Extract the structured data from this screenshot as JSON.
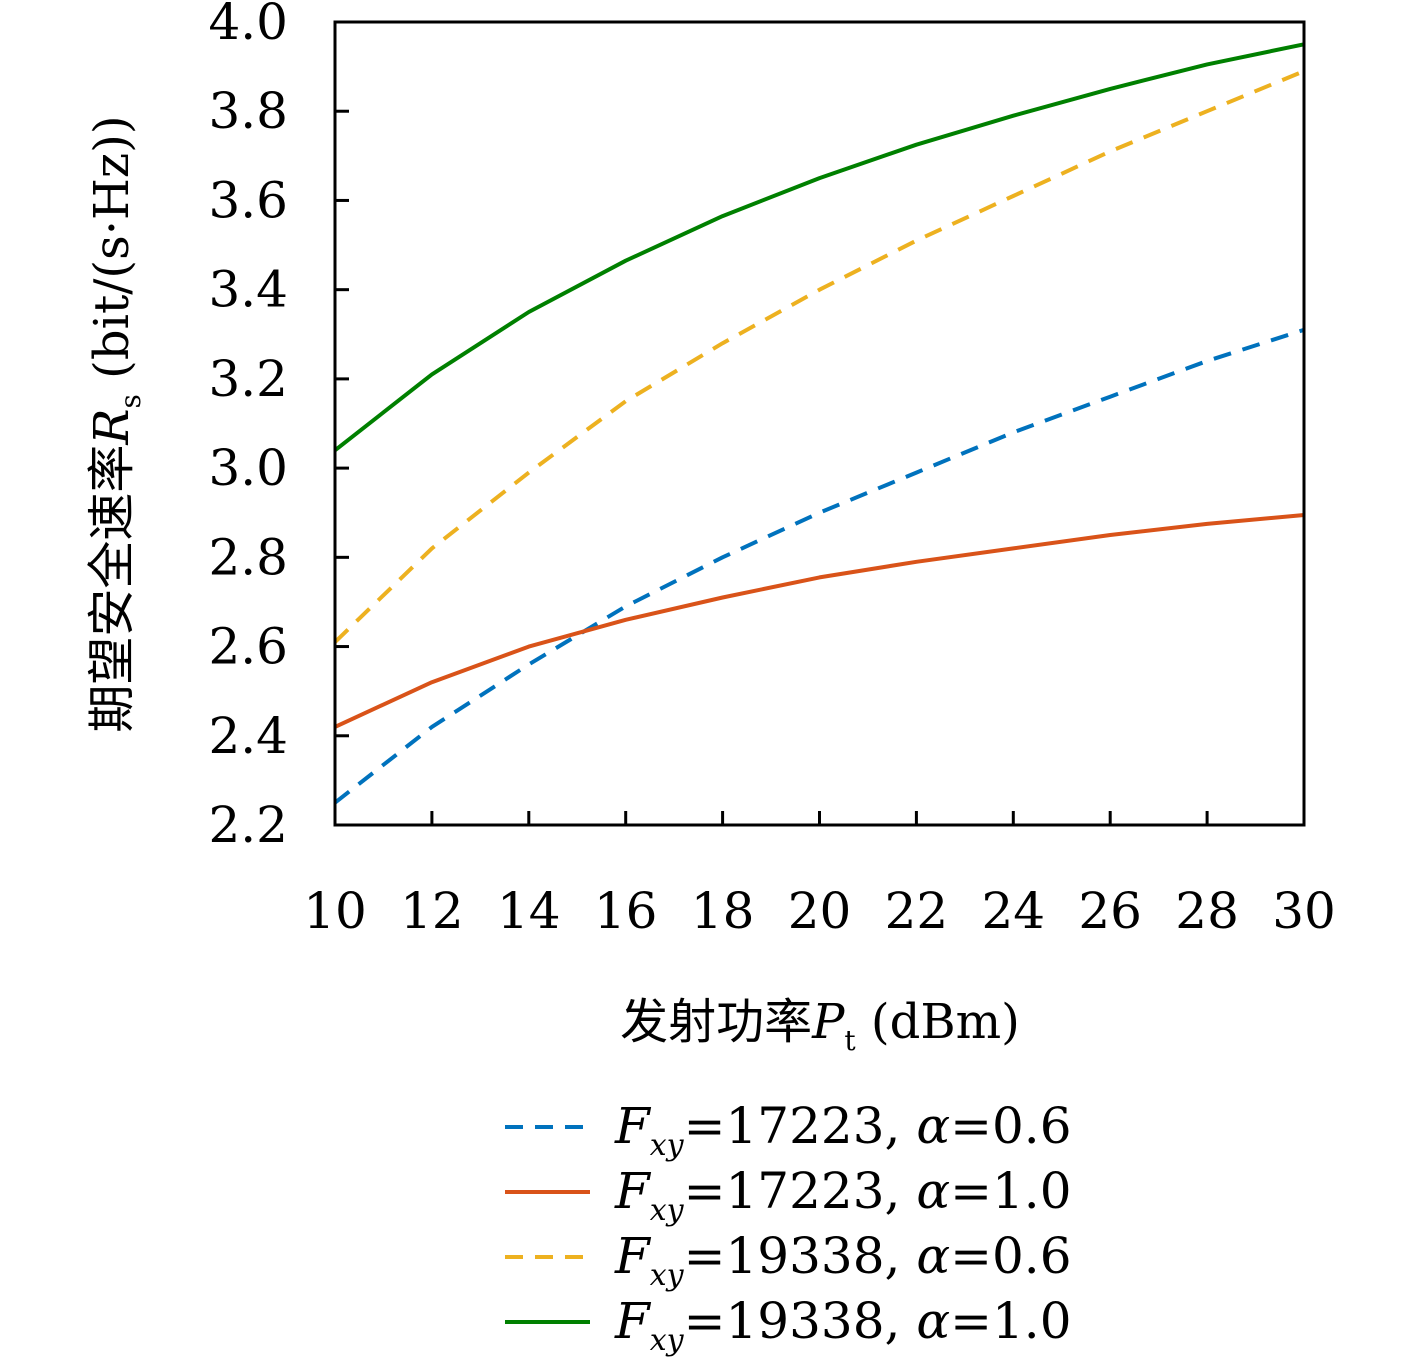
{
  "chart_data": {
    "type": "line",
    "xlabel": {
      "prefix": "发射功率",
      "symbol": "P",
      "subscript": "t",
      "unit": " (dBm)"
    },
    "ylabel": {
      "prefix": "期望安全速率",
      "symbol": "R",
      "subscript": "s",
      "unit": " (bit/(s·Hz))"
    },
    "xlim": [
      10,
      30
    ],
    "ylim": [
      2.2,
      4.0
    ],
    "xticks": [
      "10",
      "12",
      "14",
      "16",
      "18",
      "20",
      "22",
      "24",
      "26",
      "28",
      "30"
    ],
    "yticks": [
      "2.2",
      "2.4",
      "2.6",
      "2.8",
      "3.0",
      "3.2",
      "3.4",
      "3.6",
      "3.8",
      "4.0"
    ],
    "grid": false,
    "legend_position": "below",
    "x": [
      10,
      12,
      14,
      16,
      18,
      20,
      22,
      24,
      26,
      28,
      30
    ],
    "series": [
      {
        "legend": {
          "sym": "F",
          "sub": "xy",
          "value": "=17223, ",
          "greek": "α",
          "param": "=0.6"
        },
        "color": "#0072BD",
        "dash": true,
        "values": [
          2.25,
          2.42,
          2.56,
          2.69,
          2.8,
          2.9,
          2.99,
          3.08,
          3.16,
          3.24,
          3.31
        ]
      },
      {
        "legend": {
          "sym": "F",
          "sub": "xy",
          "value": "=17223, ",
          "greek": "α",
          "param": "=1.0"
        },
        "color": "#D95319",
        "dash": false,
        "values": [
          2.42,
          2.52,
          2.6,
          2.66,
          2.71,
          2.755,
          2.79,
          2.82,
          2.85,
          2.875,
          2.895
        ]
      },
      {
        "legend": {
          "sym": "F",
          "sub": "xy",
          "value": "=19338, ",
          "greek": "α",
          "param": "=0.6"
        },
        "color": "#EDB120",
        "dash": true,
        "values": [
          2.61,
          2.82,
          2.99,
          3.15,
          3.28,
          3.4,
          3.51,
          3.61,
          3.71,
          3.8,
          3.89
        ]
      },
      {
        "legend": {
          "sym": "F",
          "sub": "xy",
          "value": "=19338, ",
          "greek": "α",
          "param": "=1.0"
        },
        "color": "#008000",
        "dash": false,
        "values": [
          3.04,
          3.21,
          3.35,
          3.465,
          3.565,
          3.65,
          3.725,
          3.79,
          3.85,
          3.905,
          3.95
        ]
      }
    ]
  }
}
